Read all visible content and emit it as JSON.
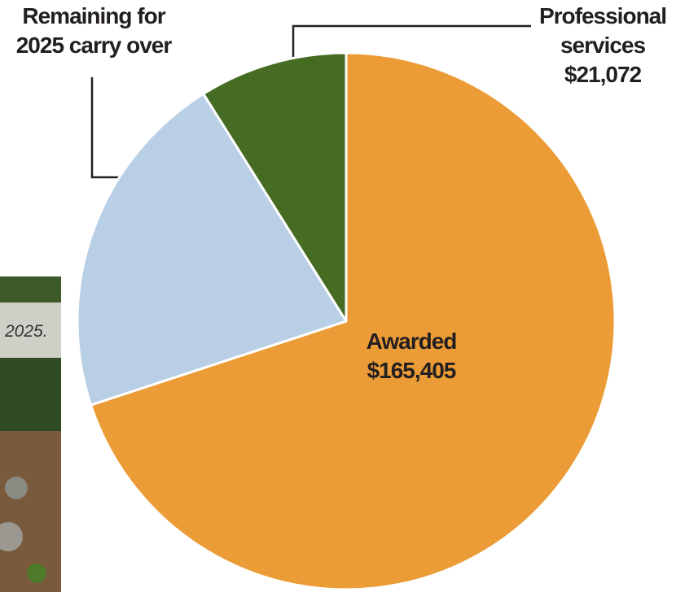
{
  "chart_data": {
    "type": "pie",
    "categories": [
      "Awarded",
      "Remaining for 2025 carry over",
      "Professional services"
    ],
    "values": [
      165405,
      50000,
      21072
    ],
    "value_labels": [
      "$165,405",
      null,
      "$21,072"
    ],
    "colors": [
      "#ec9c36",
      "#b9cfe5",
      "#466b22"
    ]
  },
  "photo_caption": "2025."
}
